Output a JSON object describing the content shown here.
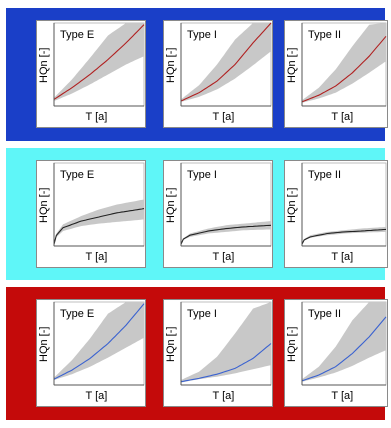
{
  "labels": {
    "y": "HQn  [-]",
    "x": "T   [a]"
  },
  "colors": {
    "band_shade": "#c8c8c8"
  },
  "chart_data": [
    {
      "type": "area",
      "band_color": "#1a3fc8",
      "line_color": "#b02020",
      "panels": [
        {
          "title": "Type E",
          "x": [
            0,
            0.2,
            0.4,
            0.6,
            0.8,
            1.0
          ],
          "y": [
            0.08,
            0.22,
            0.38,
            0.56,
            0.76,
            0.98
          ],
          "y_low": [
            0.06,
            0.15,
            0.26,
            0.38,
            0.5,
            0.6
          ],
          "y_high": [
            0.1,
            0.32,
            0.58,
            0.85,
            1.0,
            1.0
          ]
        },
        {
          "title": "Type I",
          "x": [
            0,
            0.2,
            0.4,
            0.6,
            0.8,
            1.0
          ],
          "y": [
            0.06,
            0.16,
            0.3,
            0.5,
            0.76,
            1.0
          ],
          "y_low": [
            0.05,
            0.11,
            0.2,
            0.33,
            0.49,
            0.66
          ],
          "y_high": [
            0.08,
            0.25,
            0.5,
            0.8,
            1.0,
            1.0
          ]
        },
        {
          "title": "Type II",
          "x": [
            0,
            0.2,
            0.4,
            0.6,
            0.8,
            1.0
          ],
          "y": [
            0.05,
            0.13,
            0.24,
            0.4,
            0.6,
            0.84
          ],
          "y_low": [
            0.04,
            0.09,
            0.16,
            0.27,
            0.4,
            0.54
          ],
          "y_high": [
            0.07,
            0.22,
            0.44,
            0.72,
            0.98,
            1.0
          ]
        }
      ]
    },
    {
      "type": "area",
      "band_color": "#5ff6f8",
      "line_color": "#222222",
      "panels": [
        {
          "title": "Type E",
          "x": [
            0,
            0.02,
            0.1,
            0.3,
            0.5,
            0.7,
            1.0
          ],
          "y": [
            0.02,
            0.12,
            0.22,
            0.3,
            0.35,
            0.4,
            0.45
          ],
          "y_low": [
            0.02,
            0.1,
            0.18,
            0.24,
            0.27,
            0.29,
            0.32
          ],
          "y_high": [
            0.03,
            0.14,
            0.26,
            0.36,
            0.44,
            0.5,
            0.56
          ]
        },
        {
          "title": "Type I",
          "x": [
            0,
            0.02,
            0.1,
            0.3,
            0.5,
            0.7,
            1.0
          ],
          "y": [
            0.02,
            0.08,
            0.13,
            0.18,
            0.21,
            0.23,
            0.25
          ],
          "y_low": [
            0.02,
            0.07,
            0.11,
            0.15,
            0.17,
            0.19,
            0.2
          ],
          "y_high": [
            0.03,
            0.09,
            0.15,
            0.21,
            0.25,
            0.27,
            0.3
          ]
        },
        {
          "title": "Type II",
          "x": [
            0,
            0.02,
            0.1,
            0.3,
            0.5,
            0.7,
            1.0
          ],
          "y": [
            0.02,
            0.07,
            0.11,
            0.15,
            0.17,
            0.18,
            0.2
          ],
          "y_low": [
            0.02,
            0.06,
            0.1,
            0.13,
            0.15,
            0.16,
            0.17
          ],
          "y_high": [
            0.03,
            0.08,
            0.13,
            0.17,
            0.19,
            0.21,
            0.23
          ]
        }
      ]
    },
    {
      "type": "area",
      "band_color": "#c40a0a",
      "line_color": "#3a62d0",
      "panels": [
        {
          "title": "Type E",
          "x": [
            0,
            0.2,
            0.4,
            0.6,
            0.8,
            1.0
          ],
          "y": [
            0.07,
            0.18,
            0.32,
            0.5,
            0.72,
            0.98
          ],
          "y_low": [
            0.06,
            0.13,
            0.22,
            0.33,
            0.45,
            0.57
          ],
          "y_high": [
            0.09,
            0.3,
            0.56,
            0.86,
            1.0,
            1.0
          ]
        },
        {
          "title": "Type I",
          "x": [
            0,
            0.2,
            0.4,
            0.6,
            0.8,
            1.0
          ],
          "y": [
            0.04,
            0.08,
            0.13,
            0.2,
            0.32,
            0.5
          ],
          "y_low": [
            0.03,
            0.07,
            0.1,
            0.14,
            0.19,
            0.24
          ],
          "y_high": [
            0.06,
            0.16,
            0.34,
            0.62,
            0.92,
            1.0
          ]
        },
        {
          "title": "Type II",
          "x": [
            0,
            0.2,
            0.4,
            0.6,
            0.8,
            1.0
          ],
          "y": [
            0.05,
            0.12,
            0.22,
            0.38,
            0.58,
            0.82
          ],
          "y_low": [
            0.04,
            0.09,
            0.15,
            0.23,
            0.33,
            0.42
          ],
          "y_high": [
            0.07,
            0.22,
            0.46,
            0.78,
            1.0,
            1.0
          ]
        }
      ]
    }
  ]
}
